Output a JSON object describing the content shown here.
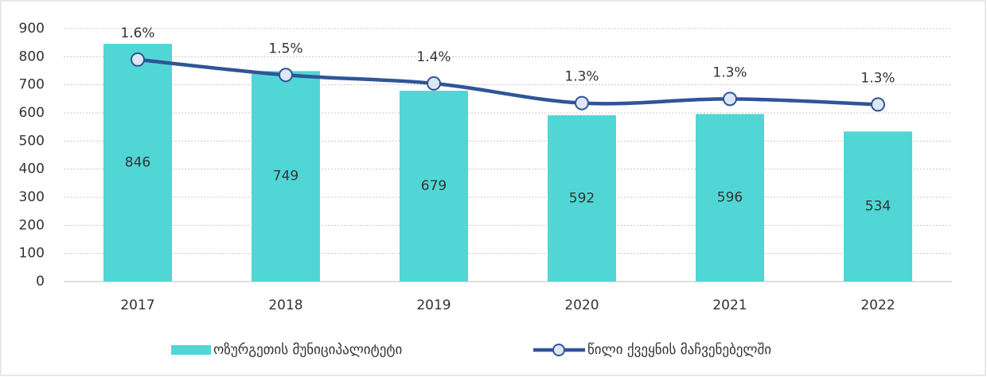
{
  "chart_data": {
    "type": "bar_line",
    "categories": [
      "2017",
      "2018",
      "2019",
      "2020",
      "2021",
      "2022"
    ],
    "series": [
      {
        "name": "ოზურგეთის მუნიციპალიტეტი",
        "type": "bar",
        "color": "#51d6d6",
        "values": [
          846,
          749,
          679,
          592,
          596,
          534
        ]
      },
      {
        "name": "წილი ქვეყნის მაჩვენებელში",
        "type": "line",
        "axis": "y2",
        "color": "#2f5597",
        "values": [
          1.58,
          1.47,
          1.41,
          1.27,
          1.3,
          1.26
        ],
        "value_labels": [
          "1.6%",
          "1.5%",
          "1.4%",
          "1.3%",
          "1.3%",
          "1.3%"
        ]
      }
    ],
    "ylim": [
      0,
      900
    ],
    "yticks": [
      0,
      100,
      200,
      300,
      400,
      500,
      600,
      700,
      800,
      900
    ],
    "y2lim": [
      0,
      1.8
    ],
    "grid": true,
    "legend": "bottom"
  }
}
